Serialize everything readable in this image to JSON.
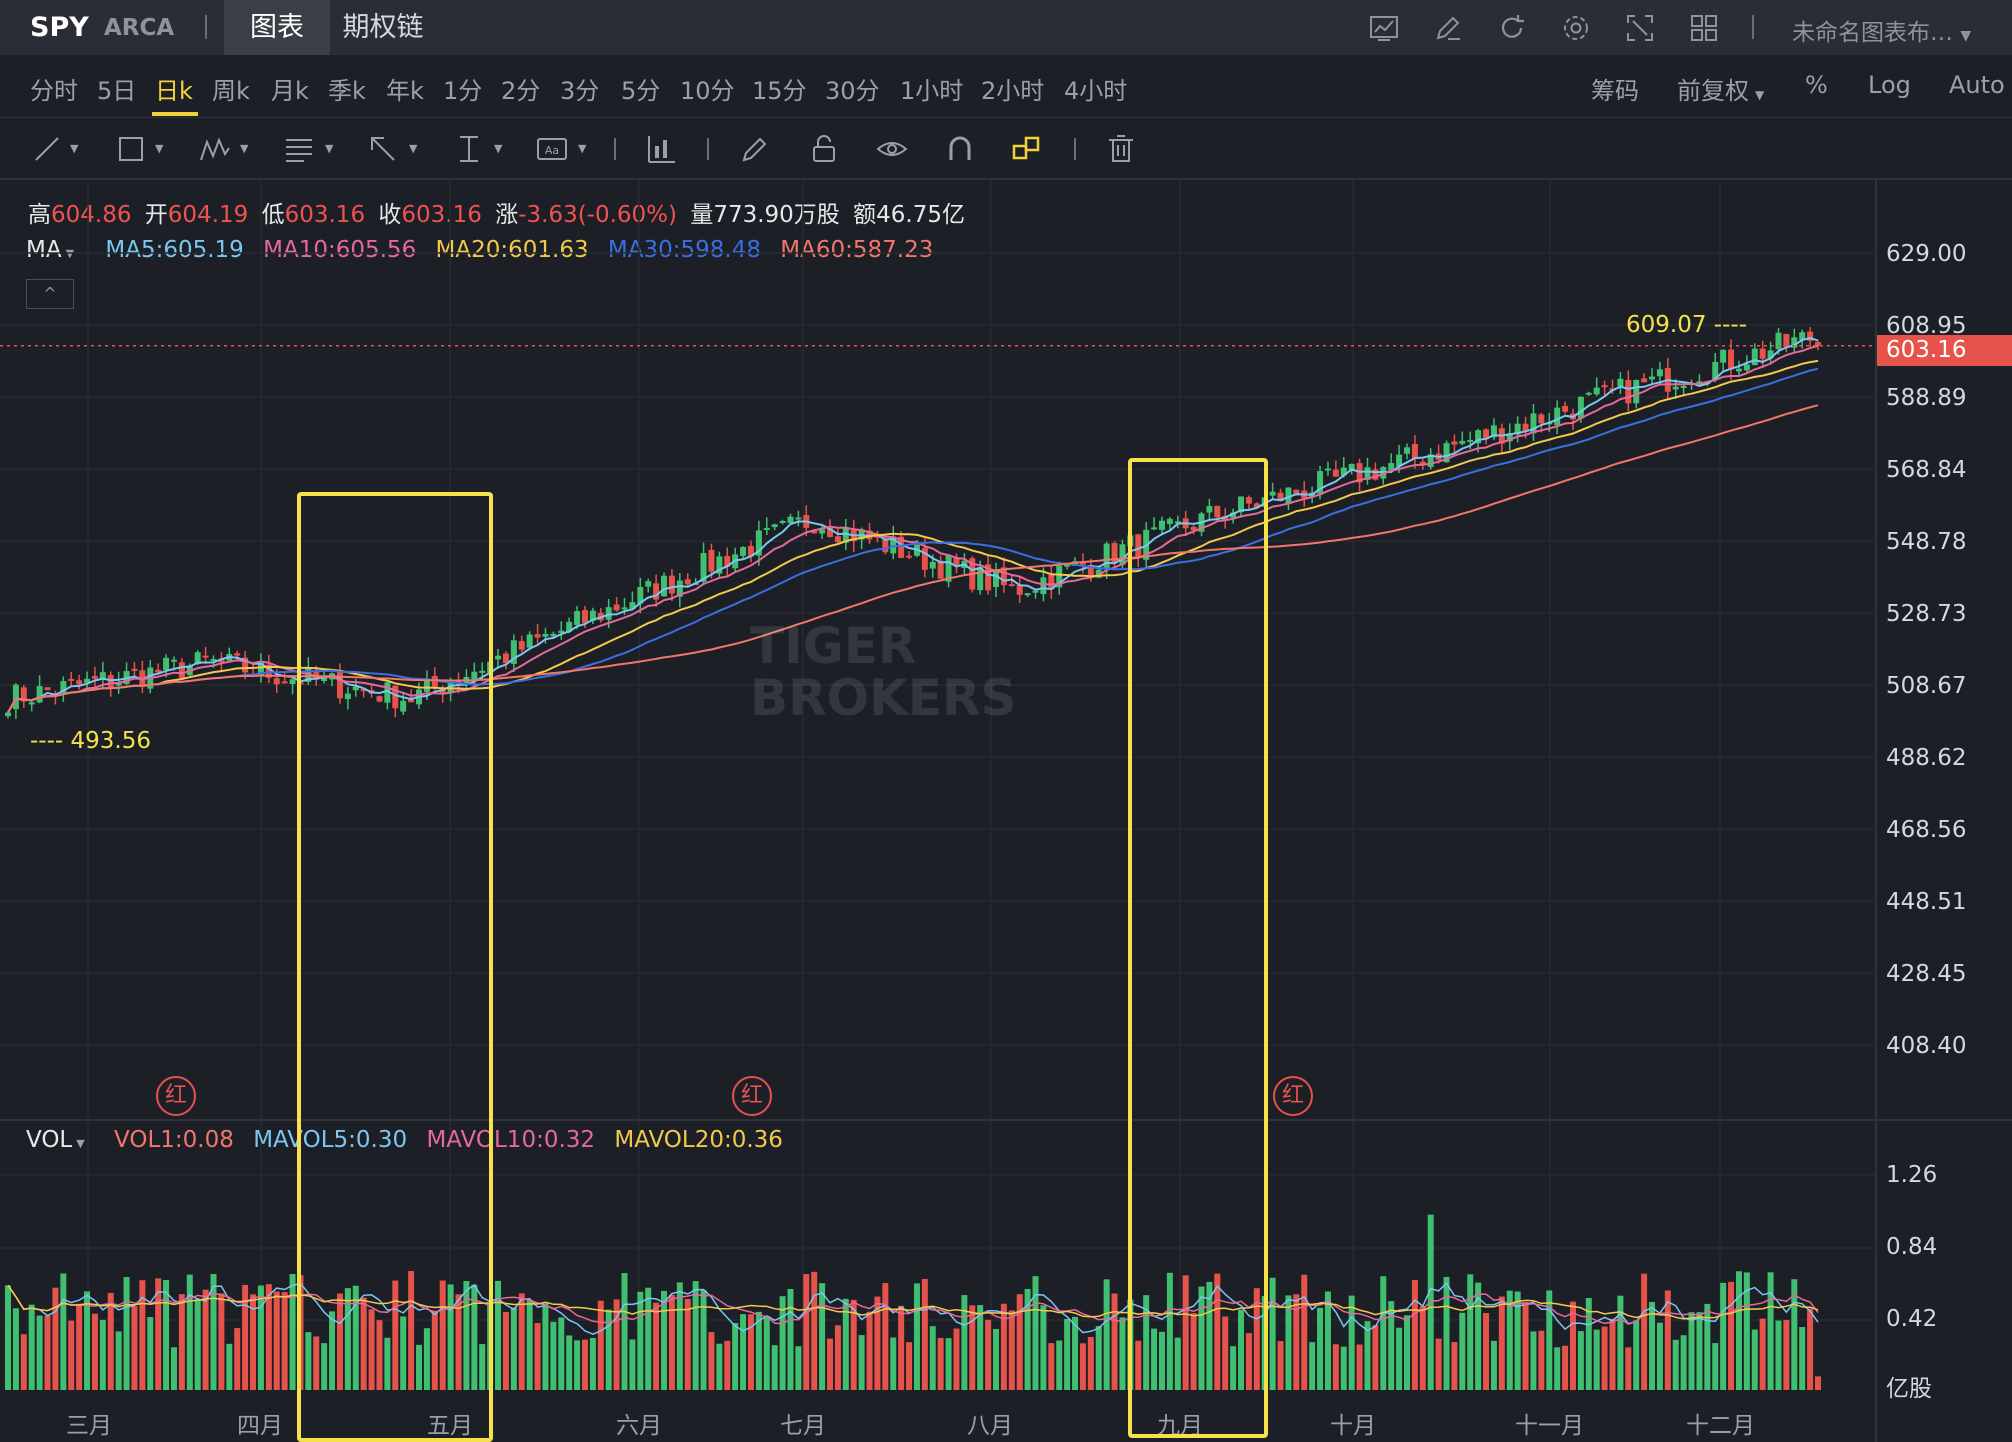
{
  "topbar": {
    "ticker": "SPY",
    "exchange": "ARCA",
    "tab_chart": "图表",
    "tab_options": "期权链",
    "layout_name": "未命名图表布…"
  },
  "intervals": [
    "分时",
    "5日",
    "日k",
    "周k",
    "月k",
    "季k",
    "年k",
    "1分",
    "2分",
    "3分",
    "5分",
    "10分",
    "15分",
    "30分",
    "1小时",
    "2小时",
    "4小时"
  ],
  "active_interval": "日k",
  "right_controls": {
    "chips": "筹码",
    "adjust": "前复权",
    "percent": "%",
    "log": "Log",
    "auto": "Auto"
  },
  "ohlc": {
    "high_label": "高",
    "high": "604.86",
    "open_label": "开",
    "open": "604.19",
    "low_label": "低",
    "low": "603.16",
    "close_label": "收",
    "close": "603.16",
    "change_label": "涨",
    "change": "-3.63(-0.60%)",
    "volume_label": "量",
    "volume": "773.90万股",
    "amount_label": "额",
    "amount": "46.75亿"
  },
  "ma_legend": {
    "name": "MA",
    "ma5": "MA5:605.19",
    "ma10": "MA10:605.56",
    "ma20": "MA20:601.63",
    "ma30": "MA30:598.48",
    "ma60": "MA60:587.23"
  },
  "price_scale": [
    "629.00",
    "608.95",
    "588.89",
    "568.84",
    "548.78",
    "528.73",
    "508.67",
    "488.62",
    "468.56",
    "448.51",
    "428.45",
    "408.40"
  ],
  "current_price": "603.16",
  "max_label": "609.07",
  "min_label": "493.56",
  "vol_legend": {
    "name": "VOL",
    "vol1": "VOL1:0.08",
    "mavol5": "MAVOL5:0.30",
    "mavol10": "MAVOL10:0.32",
    "mavol20": "MAVOL20:0.36"
  },
  "volume_scale": [
    "1.26",
    "0.84",
    "0.42"
  ],
  "volume_unit": "亿股",
  "months": [
    "三月",
    "四月",
    "五月",
    "六月",
    "七月",
    "八月",
    "九月",
    "十月",
    "十一月",
    "十二月"
  ],
  "red_marker": "红",
  "watermark": [
    "TIGER",
    "BROKERS"
  ],
  "colors": {
    "up": "#3fbf6f",
    "down": "#e5534b",
    "ma5": "#7cc6f2",
    "ma10": "#e56a9a",
    "ma20": "#f2c94c",
    "ma30": "#3b6fe0",
    "ma60": "#f0776a",
    "highlight": "#f7e14b"
  },
  "chart_data": {
    "type": "candlestick",
    "symbol": "SPY",
    "interval": "日k",
    "y_range": [
      408.4,
      629.0
    ],
    "volume_range": [
      0,
      1.26
    ],
    "price_path_by_month": {
      "三月": 505,
      "四月": 515,
      "五月": 505,
      "六月": 530,
      "七月": 555,
      "八月": 535,
      "九月": 556,
      "十月": 572,
      "十一月": 590,
      "十二月": 606
    },
    "last": {
      "open": 604.19,
      "high": 604.86,
      "low": 603.16,
      "close": 603.16
    },
    "ma": {
      "MA5": 605.19,
      "MA10": 605.56,
      "MA20": 601.63,
      "MA30": 598.48,
      "MA60": 587.23
    },
    "volume_last": {
      "VOL1": 0.08,
      "MAVOL5": 0.3,
      "MAVOL10": 0.32,
      "MAVOL20": 0.36
    }
  }
}
